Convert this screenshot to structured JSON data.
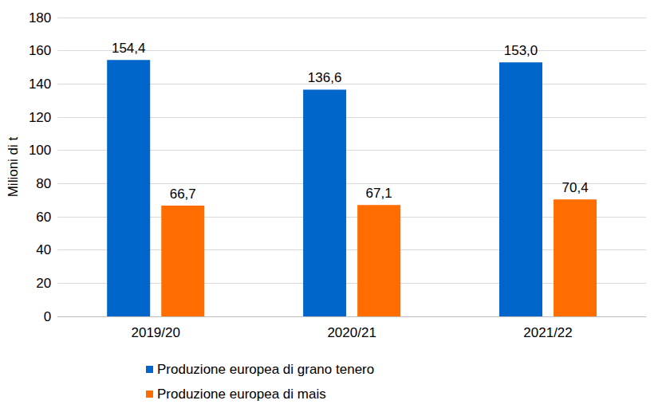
{
  "chart_data": {
    "type": "bar",
    "categories": [
      "2019/20",
      "2020/21",
      "2021/22"
    ],
    "series": [
      {
        "name": "Produzione europea di grano tenero",
        "color": "#0066cc",
        "values": [
          154.4,
          136.6,
          153.0
        ],
        "value_labels": [
          "154,4",
          "136,6",
          "153,0"
        ]
      },
      {
        "name": "Produzione europea di mais",
        "color": "#ff6d01",
        "values": [
          66.7,
          67.1,
          70.4
        ],
        "value_labels": [
          "66,7",
          "67,1",
          "70,4"
        ]
      }
    ],
    "y_label": "Milioni di t",
    "ylim": [
      0,
      180
    ],
    "yticks": [
      0,
      20,
      40,
      60,
      80,
      100,
      120,
      140,
      160,
      180
    ],
    "grid": true,
    "legend": "bottom",
    "data_labels": true
  }
}
